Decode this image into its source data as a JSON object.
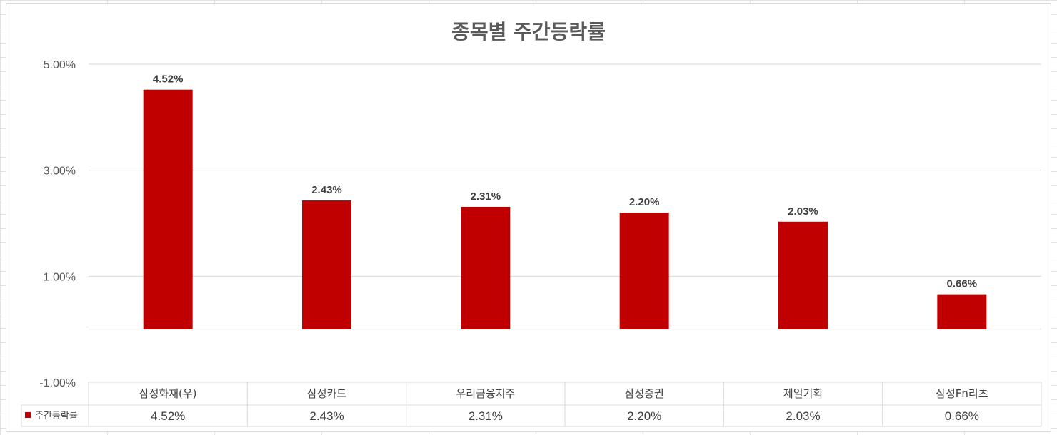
{
  "chart_data": {
    "type": "bar",
    "title": "종목별 주간등락률",
    "categories": [
      "삼성화재(우)",
      "삼성카드",
      "우리금융지주",
      "삼성증권",
      "제일기획",
      "삼성Fn리츠"
    ],
    "series": [
      {
        "name": "주간등락률",
        "values": [
          4.52,
          2.43,
          2.31,
          2.2,
          2.03,
          0.66
        ],
        "labels": [
          "4.52%",
          "2.43%",
          "2.31%",
          "2.20%",
          "2.03%",
          "0.66%"
        ],
        "color": "#c00000"
      }
    ],
    "y_ticks": [
      5.0,
      3.0,
      1.0,
      -1.0
    ],
    "y_tick_labels": [
      "5.00%",
      "3.00%",
      "1.00%",
      "-1.00%"
    ],
    "ylim": [
      -1.0,
      5.0
    ],
    "grid": true,
    "legend": "data-table",
    "data_table": true
  }
}
